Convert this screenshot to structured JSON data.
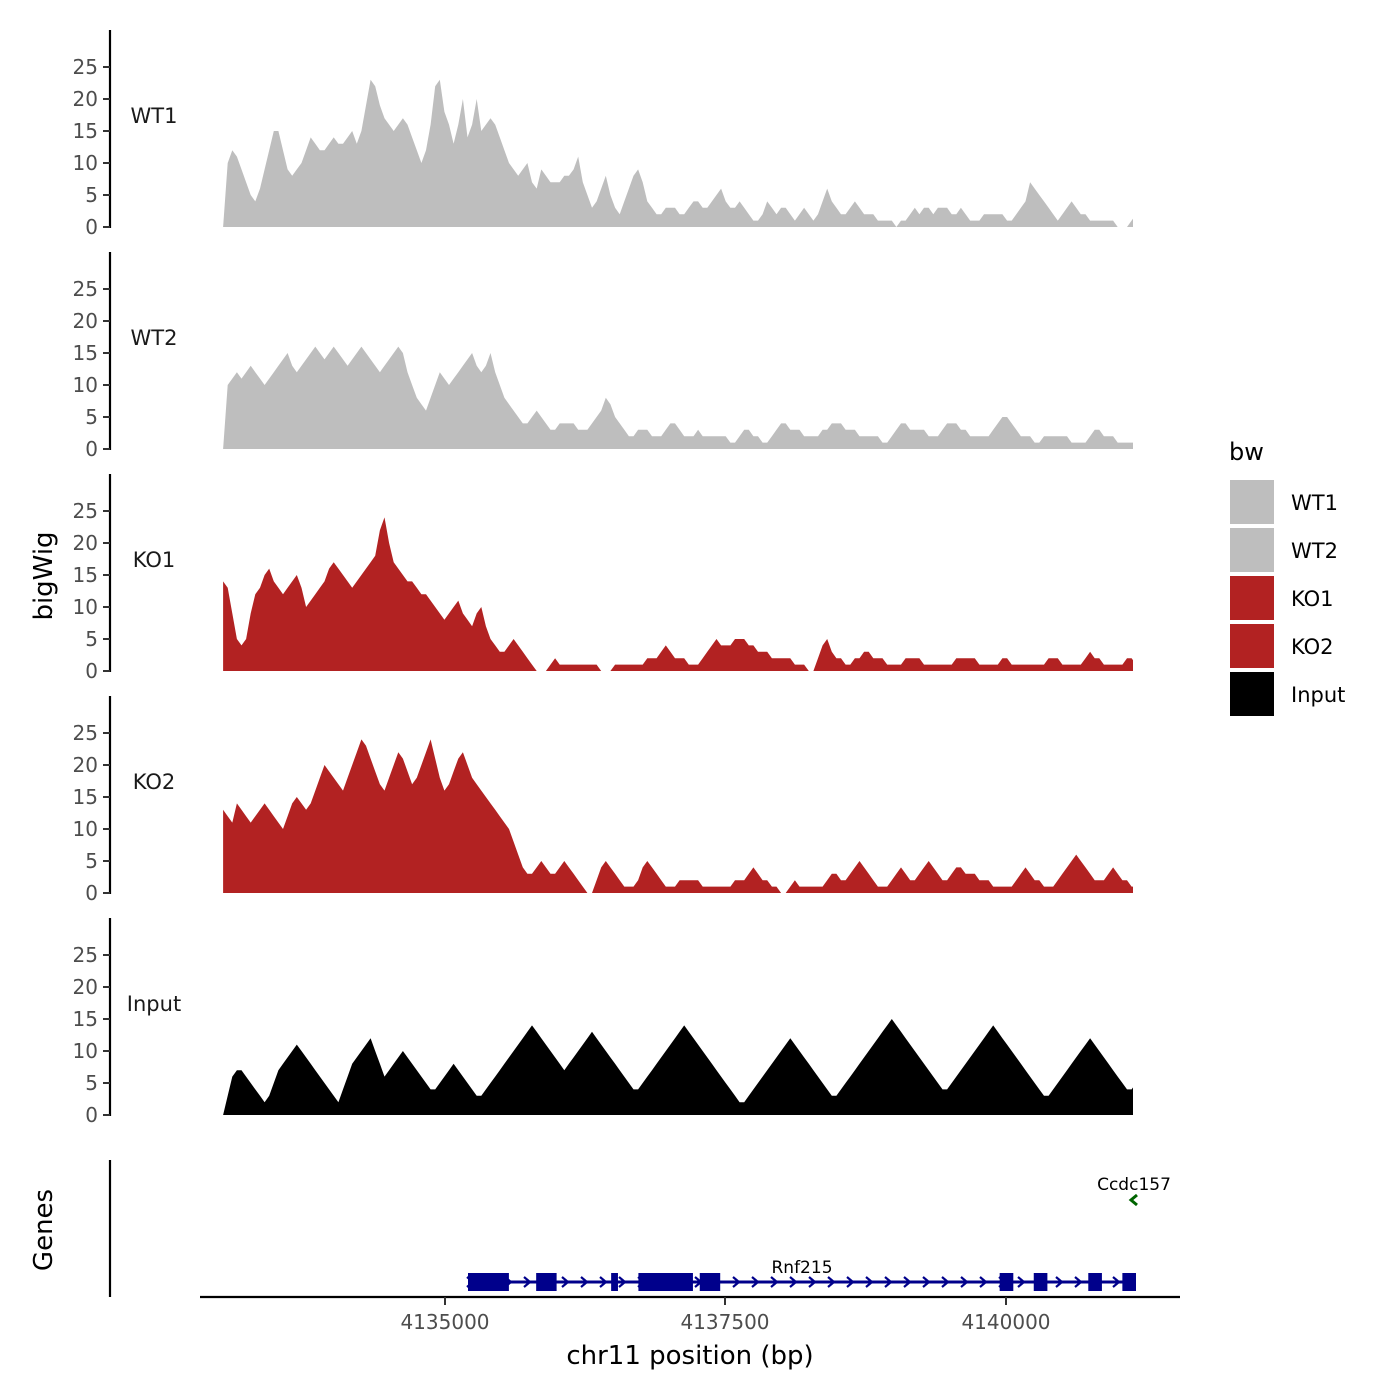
{
  "chart_data": {
    "type": "area",
    "ylabel": "bigWig",
    "xlabel": "chr11 position (bp)",
    "genes_label": "Genes",
    "legend": {
      "title": "bw",
      "entries": [
        {
          "name": "WT1",
          "color": "#bebebe"
        },
        {
          "name": "WT2",
          "color": "#bebebe"
        },
        {
          "name": "KO1",
          "color": "#b22222"
        },
        {
          "name": "KO2",
          "color": "#b22222"
        },
        {
          "name": "Input",
          "color": "#000000"
        }
      ]
    },
    "y_ticks": [
      0,
      5,
      10,
      15,
      20,
      25
    ],
    "y_tick_labels": [
      "0",
      "5",
      "10",
      "15",
      "20",
      "25"
    ],
    "ylim": [
      0,
      25
    ],
    "xlim": [
      4132200,
      4140700
    ],
    "x_ticks": [
      4135000,
      4137500,
      4140000
    ],
    "x_tick_labels": [
      "4135000",
      "4137500",
      "4140000"
    ],
    "track_start": 4132400,
    "track_step": 10,
    "series": [
      {
        "name": "WT1",
        "color": "#bebebe",
        "values": [
          0,
          10,
          12,
          11,
          9,
          7,
          5,
          4,
          6,
          9,
          12,
          15,
          15,
          12,
          9,
          8,
          9,
          10,
          12,
          14,
          13,
          12,
          12,
          13,
          14,
          13,
          13,
          14,
          15,
          13,
          15,
          19,
          23,
          22,
          19,
          17,
          16,
          15,
          16,
          17,
          16,
          14,
          12,
          10,
          12,
          16,
          22,
          23,
          18,
          16,
          13,
          16,
          20,
          14,
          16,
          20,
          15,
          16,
          17,
          16,
          14,
          12,
          10,
          9,
          8,
          9,
          10,
          7,
          6,
          9,
          8,
          7,
          7,
          7,
          8,
          8,
          9,
          11,
          7,
          5,
          3,
          4,
          6,
          8,
          5,
          3,
          2,
          4,
          6,
          8,
          9,
          7,
          4,
          3,
          2,
          2,
          3,
          3,
          3,
          2,
          2,
          3,
          4,
          4,
          3,
          3,
          4,
          5,
          6,
          4,
          3,
          3,
          4,
          3,
          2,
          1,
          1,
          2,
          4,
          3,
          2,
          3,
          3,
          2,
          1,
          2,
          3,
          2,
          1,
          2,
          4,
          6,
          4,
          3,
          2,
          2,
          3,
          4,
          3,
          2,
          2,
          2,
          1,
          1,
          1,
          1,
          0,
          1,
          1,
          2,
          3,
          2,
          3,
          3,
          2,
          3,
          3,
          3,
          2,
          2,
          3,
          2,
          1,
          1,
          1,
          2,
          2,
          2,
          2,
          2,
          1,
          1,
          2,
          3,
          4,
          7,
          6,
          5,
          4,
          3,
          2,
          1,
          2,
          3,
          4,
          3,
          2,
          2,
          1,
          1,
          1,
          1,
          1,
          1,
          0,
          0,
          0,
          1,
          2,
          4,
          6,
          4,
          3,
          2,
          2,
          1,
          1,
          2,
          2,
          1,
          2,
          1,
          1,
          1,
          0,
          0,
          1,
          1,
          1,
          0,
          0
        ],
        "gaps": [
          [
            4140500,
            4140700
          ]
        ]
      },
      {
        "name": "WT2",
        "color": "#bebebe",
        "values": [
          0,
          10,
          11,
          12,
          11,
          12,
          13,
          12,
          11,
          10,
          11,
          12,
          13,
          14,
          15,
          13,
          12,
          13,
          14,
          15,
          16,
          15,
          14,
          15,
          16,
          15,
          14,
          13,
          14,
          15,
          16,
          15,
          14,
          13,
          12,
          13,
          14,
          15,
          16,
          15,
          12,
          10,
          8,
          7,
          6,
          8,
          10,
          12,
          11,
          10,
          11,
          12,
          13,
          14,
          15,
          13,
          12,
          13,
          15,
          12,
          10,
          8,
          7,
          6,
          5,
          4,
          4,
          5,
          6,
          5,
          4,
          3,
          3,
          4,
          4,
          4,
          4,
          3,
          3,
          3,
          4,
          5,
          6,
          8,
          7,
          5,
          4,
          3,
          2,
          2,
          3,
          3,
          3,
          2,
          2,
          2,
          3,
          4,
          4,
          3,
          2,
          2,
          2,
          3,
          2,
          2,
          2,
          2,
          2,
          2,
          1,
          1,
          2,
          3,
          3,
          2,
          2,
          1,
          1,
          2,
          3,
          4,
          4,
          3,
          3,
          3,
          2,
          2,
          2,
          2,
          3,
          3,
          4,
          4,
          4,
          3,
          3,
          3,
          2,
          2,
          2,
          2,
          2,
          1,
          1,
          2,
          3,
          4,
          4,
          3,
          3,
          3,
          3,
          2,
          2,
          2,
          3,
          4,
          4,
          4,
          3,
          3,
          2,
          2,
          2,
          2,
          2,
          3,
          4,
          5,
          5,
          4,
          3,
          2,
          2,
          2,
          1,
          1,
          2,
          2,
          2,
          2,
          2,
          2,
          1,
          1,
          1,
          1,
          2,
          3,
          3,
          2,
          2,
          2,
          1,
          1,
          1,
          1,
          1,
          1,
          1,
          2,
          3,
          3,
          2,
          2,
          2,
          1,
          1,
          1,
          1,
          1,
          1,
          2,
          3,
          3,
          2,
          2,
          2,
          1,
          1,
          1,
          2,
          2,
          2
        ],
        "gaps": [
          [
            4139500,
            4139850
          ]
        ]
      },
      {
        "name": "KO1",
        "color": "#b22222",
        "values": [
          14,
          13,
          9,
          5,
          4,
          5,
          9,
          12,
          13,
          15,
          16,
          14,
          13,
          12,
          13,
          14,
          15,
          13,
          10,
          11,
          12,
          13,
          14,
          16,
          17,
          16,
          15,
          14,
          13,
          14,
          15,
          16,
          17,
          18,
          22,
          24,
          20,
          17,
          16,
          15,
          14,
          14,
          13,
          12,
          12,
          11,
          10,
          9,
          8,
          9,
          10,
          11,
          9,
          8,
          7,
          9,
          10,
          7,
          5,
          4,
          3,
          3,
          4,
          5,
          4,
          3,
          2,
          1,
          0,
          0,
          0,
          1,
          2,
          1,
          1,
          1,
          1,
          1,
          1,
          1,
          1,
          1,
          0,
          0,
          0,
          1,
          1,
          1,
          1,
          1,
          1,
          1,
          2,
          2,
          2,
          3,
          4,
          3,
          2,
          2,
          2,
          1,
          1,
          1,
          2,
          3,
          4,
          5,
          4,
          4,
          4,
          5,
          5,
          5,
          4,
          4,
          3,
          3,
          3,
          2,
          2,
          2,
          2,
          2,
          1,
          1,
          1,
          0,
          0,
          2,
          4,
          5,
          3,
          2,
          2,
          1,
          1,
          2,
          2,
          3,
          3,
          2,
          2,
          2,
          1,
          1,
          1,
          1,
          2,
          2,
          2,
          2,
          1,
          1,
          1,
          1,
          1,
          1,
          1,
          2,
          2,
          2,
          2,
          2,
          1,
          1,
          1,
          1,
          1,
          2,
          2,
          1,
          1,
          1,
          1,
          1,
          1,
          1,
          1,
          2,
          2,
          2,
          1,
          1,
          1,
          1,
          1,
          2,
          3,
          2,
          2,
          1,
          1,
          1,
          1,
          1,
          2,
          2,
          1,
          1,
          1,
          1,
          1,
          1,
          0,
          0,
          0,
          0,
          1,
          2,
          3,
          2,
          2,
          2,
          1,
          1,
          1,
          1,
          1,
          1,
          1,
          2,
          2,
          2
        ],
        "gaps": [
          [
            4138800,
            4139050
          ]
        ]
      },
      {
        "name": "KO2",
        "color": "#b22222",
        "values": [
          13,
          12,
          11,
          14,
          13,
          12,
          11,
          12,
          13,
          14,
          13,
          12,
          11,
          10,
          12,
          14,
          15,
          14,
          13,
          14,
          16,
          18,
          20,
          19,
          18,
          17,
          16,
          18,
          20,
          22,
          24,
          23,
          21,
          19,
          17,
          16,
          18,
          20,
          22,
          21,
          19,
          17,
          18,
          20,
          22,
          24,
          21,
          18,
          16,
          17,
          19,
          21,
          22,
          20,
          18,
          17,
          16,
          15,
          14,
          13,
          12,
          11,
          10,
          8,
          6,
          4,
          3,
          3,
          4,
          5,
          4,
          3,
          3,
          4,
          5,
          4,
          3,
          2,
          1,
          0,
          0,
          2,
          4,
          5,
          4,
          3,
          2,
          1,
          1,
          1,
          2,
          4,
          5,
          4,
          3,
          2,
          1,
          1,
          1,
          2,
          2,
          2,
          2,
          2,
          1,
          1,
          1,
          1,
          1,
          1,
          1,
          2,
          2,
          2,
          3,
          4,
          3,
          2,
          2,
          1,
          1,
          0,
          0,
          1,
          2,
          1,
          1,
          1,
          1,
          1,
          1,
          2,
          3,
          3,
          2,
          2,
          3,
          4,
          5,
          4,
          3,
          2,
          1,
          1,
          1,
          2,
          3,
          4,
          3,
          2,
          2,
          3,
          4,
          5,
          4,
          3,
          2,
          2,
          3,
          4,
          4,
          3,
          3,
          3,
          2,
          2,
          2,
          1,
          1,
          1,
          1,
          1,
          2,
          3,
          4,
          3,
          2,
          2,
          1,
          1,
          1,
          2,
          3,
          4,
          5,
          6,
          5,
          4,
          3,
          2,
          2,
          2,
          3,
          4,
          3,
          2,
          2,
          1,
          1,
          1,
          1,
          1,
          1,
          2,
          2,
          1,
          1,
          1,
          1,
          2,
          3,
          4,
          6,
          5,
          3,
          2,
          2,
          1,
          1,
          1,
          2,
          2,
          2
        ],
        "gaps": [
          [
            4137650,
            4137850
          ],
          [
            4140150,
            4140300
          ]
        ]
      },
      {
        "name": "Input",
        "color": "#000000",
        "values": [
          0,
          3,
          6,
          7,
          7,
          6,
          5,
          4,
          3,
          2,
          3,
          5,
          7,
          8,
          9,
          10,
          11,
          10,
          9,
          8,
          7,
          6,
          5,
          4,
          3,
          2,
          4,
          6,
          8,
          9,
          10,
          11,
          12,
          10,
          8,
          6,
          7,
          8,
          9,
          10,
          9,
          8,
          7,
          6,
          5,
          4,
          4,
          5,
          6,
          7,
          8,
          7,
          6,
          5,
          4,
          3,
          3,
          4,
          5,
          6,
          7,
          8,
          9,
          10,
          11,
          12,
          13,
          14,
          13,
          12,
          11,
          10,
          9,
          8,
          7,
          8,
          9,
          10,
          11,
          12,
          13,
          12,
          11,
          10,
          9,
          8,
          7,
          6,
          5,
          4,
          4,
          5,
          6,
          7,
          8,
          9,
          10,
          11,
          12,
          13,
          14,
          13,
          12,
          11,
          10,
          9,
          8,
          7,
          6,
          5,
          4,
          3,
          2,
          2,
          3,
          4,
          5,
          6,
          7,
          8,
          9,
          10,
          11,
          12,
          11,
          10,
          9,
          8,
          7,
          6,
          5,
          4,
          3,
          3,
          4,
          5,
          6,
          7,
          8,
          9,
          10,
          11,
          12,
          13,
          14,
          15,
          14,
          13,
          12,
          11,
          10,
          9,
          8,
          7,
          6,
          5,
          4,
          4,
          5,
          6,
          7,
          8,
          9,
          10,
          11,
          12,
          13,
          14,
          13,
          12,
          11,
          10,
          9,
          8,
          7,
          6,
          5,
          4,
          3,
          3,
          4,
          5,
          6,
          7,
          8,
          9,
          10,
          11,
          12,
          11,
          10,
          9,
          8,
          7,
          6,
          5,
          4,
          4,
          5,
          6,
          7,
          8,
          9,
          10,
          11,
          12,
          11,
          10,
          9,
          8,
          7,
          6,
          5,
          5,
          6,
          7,
          8,
          9,
          10,
          10,
          10
        ],
        "gaps": []
      }
    ],
    "genes": [
      {
        "name": "Rnf215",
        "strand": "+",
        "color": "#00008b",
        "start": 4135200,
        "end": 4140100,
        "exons": [
          [
            4135200,
            4135500
          ],
          [
            4135700,
            4135850
          ],
          [
            4136250,
            4136300
          ],
          [
            4136450,
            4136850
          ],
          [
            4136900,
            4137050
          ],
          [
            4139100,
            4139200
          ],
          [
            4139350,
            4139450
          ],
          [
            4139750,
            4139850
          ],
          [
            4140000,
            4140100
          ]
        ]
      },
      {
        "name": "Ccdc157",
        "strand": "-",
        "color": "#006400",
        "start": 4140060,
        "end": 4140100,
        "exons": []
      }
    ]
  }
}
